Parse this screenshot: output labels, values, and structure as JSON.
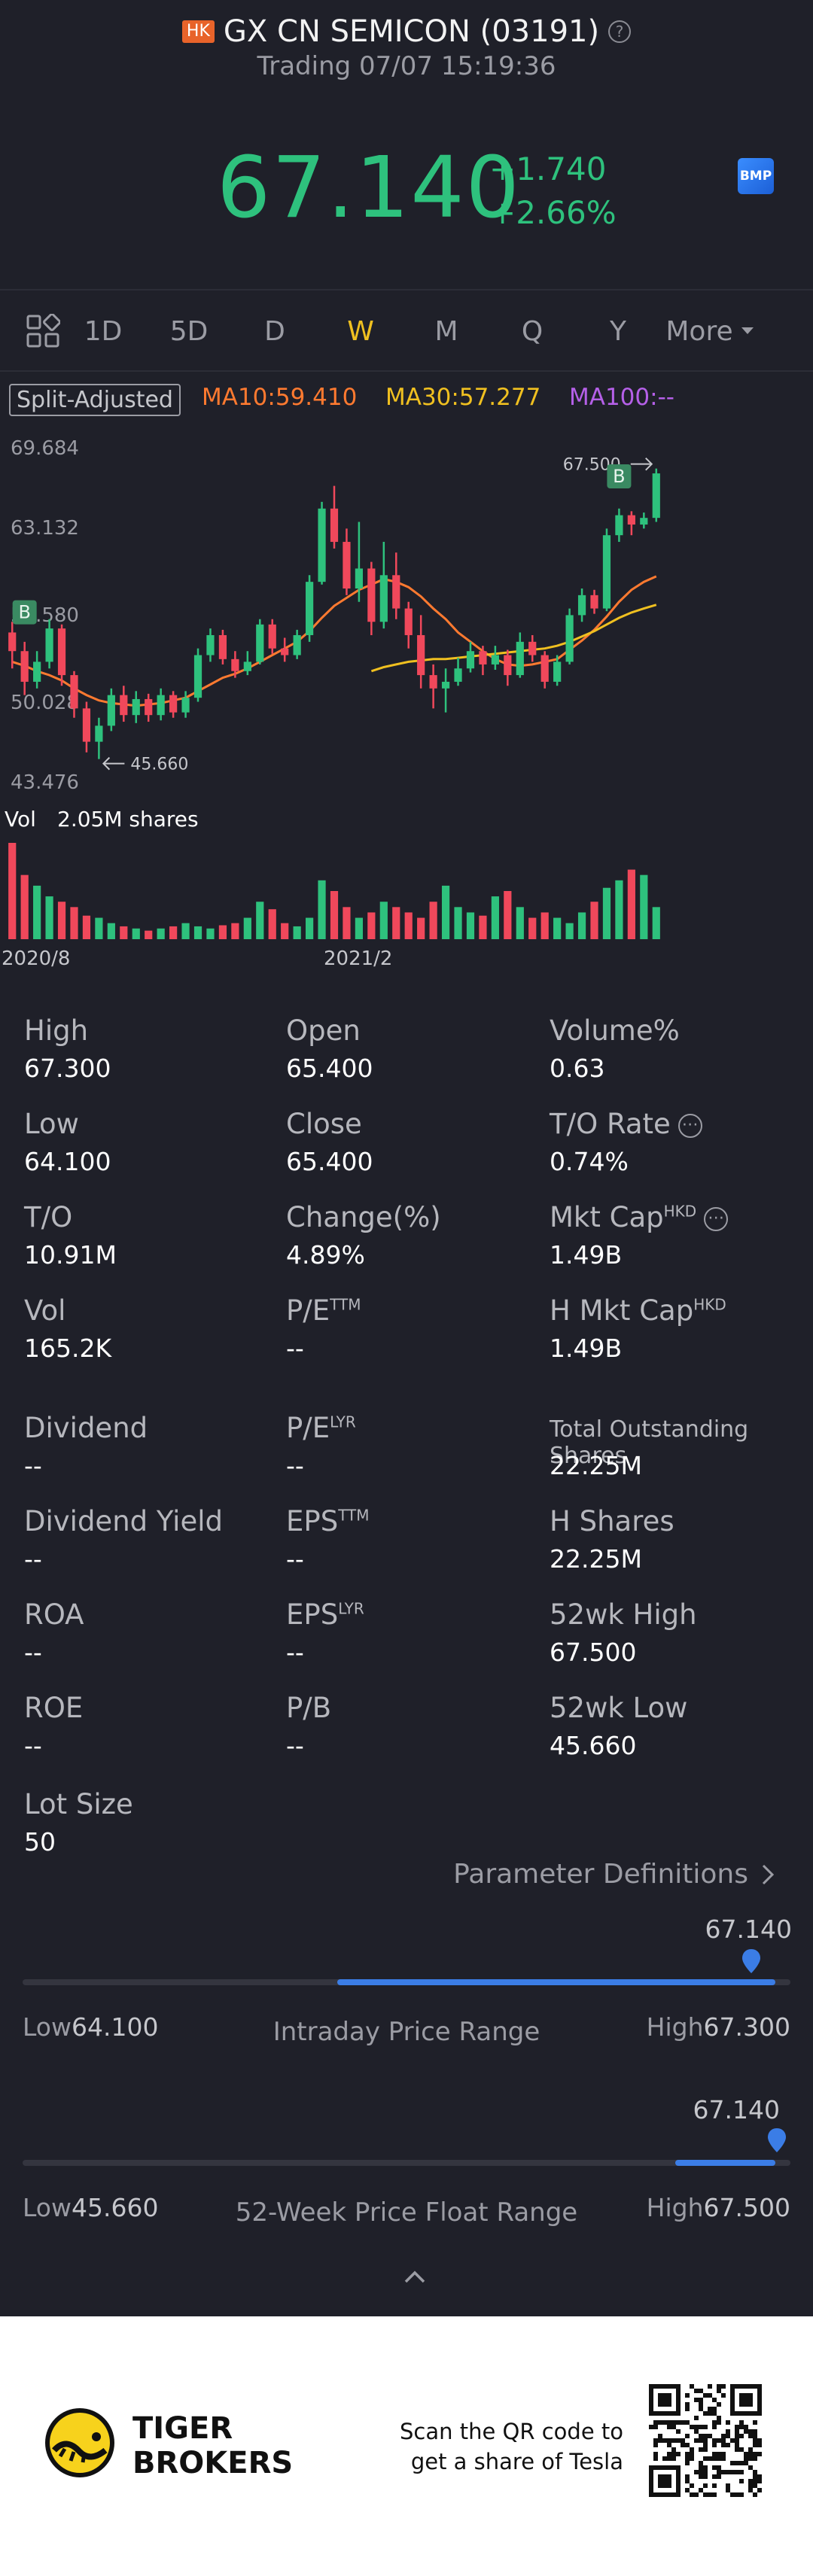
{
  "header": {
    "market_badge": "HK",
    "title": "GX CN SEMICON (03191)",
    "status": "Trading 07/07 15:19:36",
    "price": "67.140",
    "change_abs": "+1.740",
    "change_pct": "+2.66%",
    "bmp_label": "BMP"
  },
  "tabs": [
    {
      "label": "1D",
      "active": false
    },
    {
      "label": "5D",
      "active": false
    },
    {
      "label": "D",
      "active": false
    },
    {
      "label": "W",
      "active": true
    },
    {
      "label": "M",
      "active": false
    },
    {
      "label": "Q",
      "active": false
    },
    {
      "label": "Y",
      "active": false
    },
    {
      "label": "More",
      "active": false
    }
  ],
  "ma": {
    "adjust_label": "Split-Adjusted",
    "ma10": "MA10:59.410",
    "ma30": "MA30:57.277",
    "ma100": "MA100:--",
    "colors": {
      "ma10": "#ff7a30",
      "ma30": "#f0c020",
      "ma100": "#b560e8"
    }
  },
  "chart_data": {
    "type": "candlestick",
    "y_labels": [
      "69.684",
      "63.132",
      "56.580",
      "50.028",
      "43.476"
    ],
    "ylim": [
      43.476,
      69.684
    ],
    "high_marker": "67.500",
    "low_marker": "45.660",
    "buy_marker": "B",
    "x_labels": [
      "2020/8",
      "2021/2"
    ],
    "volume_label": "Vol",
    "volume_value": "2.05M shares",
    "colors": {
      "up": "#2ec17d",
      "down": "#f0485b"
    },
    "candles": [
      {
        "o": 55.2,
        "c": 53.8,
        "h": 56.0,
        "l": 52.5
      },
      {
        "o": 53.8,
        "c": 51.5,
        "h": 54.5,
        "l": 50.5
      },
      {
        "o": 51.5,
        "c": 53.0,
        "h": 53.8,
        "l": 51.0
      },
      {
        "o": 53.0,
        "c": 55.5,
        "h": 56.2,
        "l": 52.5
      },
      {
        "o": 55.5,
        "c": 52.0,
        "h": 55.8,
        "l": 51.2
      },
      {
        "o": 52.0,
        "c": 49.5,
        "h": 52.3,
        "l": 48.8
      },
      {
        "o": 49.5,
        "c": 47.0,
        "h": 50.0,
        "l": 46.2
      },
      {
        "o": 47.0,
        "c": 48.2,
        "h": 48.8,
        "l": 45.7
      },
      {
        "o": 48.2,
        "c": 50.5,
        "h": 51.0,
        "l": 47.8
      },
      {
        "o": 50.5,
        "c": 49.0,
        "h": 51.2,
        "l": 48.5
      },
      {
        "o": 49.0,
        "c": 50.2,
        "h": 50.8,
        "l": 48.4
      },
      {
        "o": 50.2,
        "c": 49.0,
        "h": 50.6,
        "l": 48.5
      },
      {
        "o": 49.0,
        "c": 50.5,
        "h": 51.0,
        "l": 48.6
      },
      {
        "o": 50.5,
        "c": 49.2,
        "h": 50.8,
        "l": 48.8
      },
      {
        "o": 49.2,
        "c": 50.3,
        "h": 50.8,
        "l": 48.8
      },
      {
        "o": 50.3,
        "c": 53.5,
        "h": 54.0,
        "l": 50.0
      },
      {
        "o": 53.5,
        "c": 55.0,
        "h": 55.5,
        "l": 53.0
      },
      {
        "o": 55.0,
        "c": 53.2,
        "h": 55.4,
        "l": 52.8
      },
      {
        "o": 53.2,
        "c": 52.3,
        "h": 53.8,
        "l": 51.8
      },
      {
        "o": 52.3,
        "c": 53.0,
        "h": 53.8,
        "l": 52.0
      },
      {
        "o": 53.0,
        "c": 55.8,
        "h": 56.2,
        "l": 52.8
      },
      {
        "o": 55.8,
        "c": 54.0,
        "h": 56.2,
        "l": 53.6
      },
      {
        "o": 54.0,
        "c": 53.5,
        "h": 54.8,
        "l": 53.0
      },
      {
        "o": 53.5,
        "c": 55.0,
        "h": 55.4,
        "l": 53.2
      },
      {
        "o": 55.0,
        "c": 59.0,
        "h": 59.5,
        "l": 54.5
      },
      {
        "o": 59.0,
        "c": 64.5,
        "h": 65.0,
        "l": 58.8
      },
      {
        "o": 64.5,
        "c": 62.0,
        "h": 66.2,
        "l": 61.5
      },
      {
        "o": 62.0,
        "c": 58.5,
        "h": 63.0,
        "l": 58.0
      },
      {
        "o": 58.5,
        "c": 60.0,
        "h": 63.5,
        "l": 57.5
      },
      {
        "o": 60.0,
        "c": 56.0,
        "h": 60.5,
        "l": 55.0
      },
      {
        "o": 56.0,
        "c": 59.5,
        "h": 62.0,
        "l": 55.5
      },
      {
        "o": 59.5,
        "c": 57.0,
        "h": 61.2,
        "l": 56.2
      },
      {
        "o": 57.0,
        "c": 55.0,
        "h": 57.5,
        "l": 54.0
      },
      {
        "o": 55.0,
        "c": 52.0,
        "h": 56.5,
        "l": 51.0
      },
      {
        "o": 52.0,
        "c": 51.0,
        "h": 52.8,
        "l": 49.5
      },
      {
        "o": 51.0,
        "c": 51.5,
        "h": 52.5,
        "l": 49.2
      },
      {
        "o": 51.5,
        "c": 52.5,
        "h": 53.3,
        "l": 51.2
      },
      {
        "o": 52.5,
        "c": 53.8,
        "h": 54.5,
        "l": 52.2
      },
      {
        "o": 53.8,
        "c": 52.8,
        "h": 54.2,
        "l": 52.0
      },
      {
        "o": 52.8,
        "c": 53.5,
        "h": 54.2,
        "l": 52.4
      },
      {
        "o": 53.5,
        "c": 52.0,
        "h": 53.9,
        "l": 51.2
      },
      {
        "o": 52.0,
        "c": 54.5,
        "h": 55.2,
        "l": 51.8
      },
      {
        "o": 54.5,
        "c": 53.5,
        "h": 55.0,
        "l": 53.0
      },
      {
        "o": 53.5,
        "c": 51.5,
        "h": 53.8,
        "l": 51.0
      },
      {
        "o": 51.5,
        "c": 53.0,
        "h": 53.5,
        "l": 51.2
      },
      {
        "o": 53.0,
        "c": 56.5,
        "h": 57.0,
        "l": 52.8
      },
      {
        "o": 56.5,
        "c": 58.0,
        "h": 58.5,
        "l": 56.0
      },
      {
        "o": 58.0,
        "c": 57.0,
        "h": 58.4,
        "l": 56.6
      },
      {
        "o": 57.0,
        "c": 62.5,
        "h": 63.0,
        "l": 56.8
      },
      {
        "o": 62.5,
        "c": 64.0,
        "h": 64.5,
        "l": 62.0
      },
      {
        "o": 64.0,
        "c": 63.3,
        "h": 64.3,
        "l": 62.5
      },
      {
        "o": 63.3,
        "c": 63.8,
        "h": 64.2,
        "l": 63.0
      },
      {
        "o": 63.8,
        "c": 67.14,
        "h": 67.5,
        "l": 63.5
      }
    ],
    "ma10": [
      53.0,
      52.7,
      52.3,
      52.0,
      51.6,
      51.0,
      50.5,
      50.1,
      49.9,
      49.8,
      49.7,
      49.8,
      49.9,
      50.1,
      50.3,
      50.8,
      51.3,
      51.8,
      52.1,
      52.5,
      53.0,
      53.5,
      54.0,
      54.5,
      55.3,
      56.3,
      57.2,
      57.8,
      58.4,
      58.8,
      59.2,
      59.0,
      58.6,
      57.9,
      57.0,
      56.2,
      55.2,
      54.5,
      53.8,
      53.2,
      52.8,
      52.7,
      52.8,
      53.0,
      53.2,
      53.9,
      54.6,
      55.4,
      56.4,
      57.5,
      58.4,
      59.0,
      59.41
    ],
    "ma30": [
      null,
      null,
      null,
      null,
      null,
      null,
      null,
      null,
      null,
      null,
      null,
      null,
      null,
      null,
      null,
      null,
      null,
      null,
      null,
      null,
      null,
      null,
      null,
      null,
      null,
      null,
      null,
      null,
      null,
      52.3,
      52.6,
      52.8,
      53.0,
      53.1,
      53.2,
      53.2,
      53.3,
      53.4,
      53.5,
      53.6,
      53.7,
      53.8,
      53.9,
      54.0,
      54.2,
      54.5,
      54.9,
      55.3,
      55.8,
      56.3,
      56.7,
      57.0,
      57.277
    ],
    "volumes": [
      0.9,
      0.6,
      0.5,
      0.4,
      0.35,
      0.3,
      0.22,
      0.2,
      0.15,
      0.12,
      0.1,
      0.08,
      0.1,
      0.12,
      0.15,
      0.12,
      0.1,
      0.13,
      0.15,
      0.2,
      0.35,
      0.28,
      0.15,
      0.12,
      0.2,
      0.55,
      0.45,
      0.3,
      0.2,
      0.25,
      0.35,
      0.3,
      0.25,
      0.2,
      0.35,
      0.5,
      0.3,
      0.25,
      0.22,
      0.4,
      0.45,
      0.3,
      0.2,
      0.25,
      0.2,
      0.15,
      0.25,
      0.35,
      0.48,
      0.55,
      0.65,
      0.6,
      0.3
    ]
  },
  "stats": {
    "rows": [
      [
        {
          "label": "High",
          "sup": "",
          "value": "67.300"
        },
        {
          "label": "Open",
          "sup": "",
          "value": "65.400"
        },
        {
          "label": "Volume%",
          "sup": "",
          "value": "0.63"
        }
      ],
      [
        {
          "label": "Low",
          "sup": "",
          "value": "64.100"
        },
        {
          "label": "Close",
          "sup": "",
          "value": "65.400"
        },
        {
          "label": "T/O Rate",
          "sup": "",
          "value": "0.74%",
          "info": true
        }
      ],
      [
        {
          "label": "T/O",
          "sup": "",
          "value": "10.91M"
        },
        {
          "label": "Change(%)",
          "sup": "",
          "value": "4.89%"
        },
        {
          "label": "Mkt Cap",
          "sup": "HKD",
          "value": "1.49B",
          "info": true
        }
      ],
      [
        {
          "label": "Vol",
          "sup": "",
          "value": "165.2K"
        },
        {
          "label": "P/E",
          "sup": "TTM",
          "value": "--"
        },
        {
          "label": "H Mkt Cap",
          "sup": "HKD",
          "value": "1.49B"
        }
      ],
      [
        {
          "label": "Dividend",
          "sup": "",
          "value": "--"
        },
        {
          "label": "P/E",
          "sup": "LYR",
          "value": "--"
        },
        {
          "label": "Total Outstanding Shares",
          "sup": "",
          "value": "22.25M",
          "small": true
        }
      ],
      [
        {
          "label": "Dividend Yield",
          "sup": "",
          "value": "--"
        },
        {
          "label": "EPS",
          "sup": "TTM",
          "value": "--"
        },
        {
          "label": "H Shares",
          "sup": "",
          "value": "22.25M"
        }
      ],
      [
        {
          "label": "ROA",
          "sup": "",
          "value": "--"
        },
        {
          "label": "EPS",
          "sup": "LYR",
          "value": "--"
        },
        {
          "label": "52wk High",
          "sup": "",
          "value": "67.500"
        }
      ],
      [
        {
          "label": "ROE",
          "sup": "",
          "value": "--"
        },
        {
          "label": "P/B",
          "sup": "",
          "value": "--"
        },
        {
          "label": "52wk Low",
          "sup": "",
          "value": "45.660"
        }
      ],
      [
        {
          "label": "Lot Size",
          "sup": "",
          "value": "50"
        }
      ]
    ],
    "param_def": "Parameter Definitions"
  },
  "intraday_range": {
    "current": "67.140",
    "low_label": "Low",
    "low_value": "64.100",
    "high_label": "High",
    "high_value": "67.300",
    "title": "Intraday Price Range",
    "fill_from": 0.41,
    "fill_to": 0.98
  },
  "week52_range": {
    "current": "67.140",
    "low_label": "Low",
    "low_value": "45.660",
    "high_label": "High",
    "high_value": "67.500",
    "title": "52-Week Price Float Range",
    "fill_from": 0.85,
    "fill_to": 0.98
  },
  "footer": {
    "brand_line1": "TIGER",
    "brand_line2": "BROKERS",
    "scan_line1": "Scan the QR code to",
    "scan_line2": "get a share of Tesla"
  }
}
